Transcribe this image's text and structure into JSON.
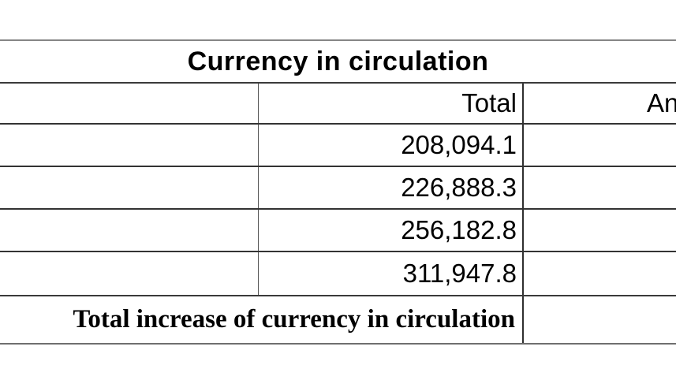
{
  "table": {
    "title": "Currency in circulation",
    "columns": [
      {
        "label": ""
      },
      {
        "label": "Total"
      },
      {
        "label": "An"
      }
    ],
    "rows": [
      {
        "label": "",
        "total": "208,094.1",
        "annual": ""
      },
      {
        "label": "",
        "total": "226,888.3",
        "annual": ""
      },
      {
        "label": "",
        "total": "256,182.8",
        "annual": ""
      },
      {
        "label": "",
        "total": "311,947.8",
        "annual": ""
      }
    ],
    "footer": {
      "label": "Total increase of currency in circulation",
      "value": ""
    }
  },
  "colors": {
    "background": "#ffffff",
    "text": "#000000",
    "outer_line": "#868686",
    "inner_line": "#333333",
    "bottom_line": "#6f6f6f"
  }
}
